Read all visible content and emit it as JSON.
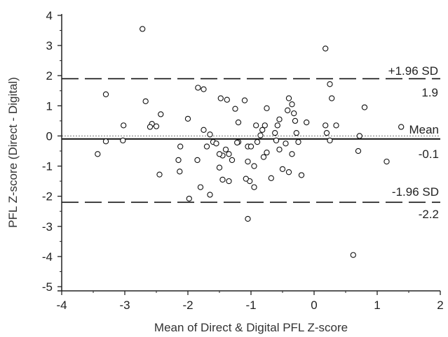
{
  "chart_data": {
    "type": "scatter",
    "xlabel": "Mean of Direct & Digital PFL Z-score",
    "ylabel": "PFL Z-score (Direct - Digital)",
    "xlim": [
      -4,
      2
    ],
    "ylim": [
      -5,
      4
    ],
    "xticks": [
      -4,
      -3,
      -2,
      -1,
      0,
      1,
      2
    ],
    "yticks": [
      -5,
      -4,
      -3,
      -2,
      -1,
      0,
      1,
      2,
      3,
      4
    ],
    "xtick_labels": [
      "-4",
      "-3",
      "-2",
      "-1",
      "0",
      "1",
      "2"
    ],
    "ytick_labels": [
      "-5",
      "-4",
      "-3",
      "-2",
      "-1",
      "0",
      "1",
      "2",
      "3",
      "4"
    ],
    "grid": false,
    "reference_lines": {
      "zero": {
        "y": 0
      },
      "mean": {
        "y": -0.1,
        "label": "Mean",
        "value_label": "-0.1"
      },
      "upper_loa": {
        "y": 1.9,
        "label": "+1.96 SD",
        "value_label": "1.9"
      },
      "lower_loa": {
        "y": -2.2,
        "label": "-1.96 SD",
        "value_label": "-2.2"
      }
    },
    "points": [
      [
        -2.72,
        3.55
      ],
      [
        0.18,
        2.9
      ],
      [
        -3.3,
        1.38
      ],
      [
        -2.67,
        1.15
      ],
      [
        -2.43,
        0.72
      ],
      [
        -2.57,
        0.4
      ],
      [
        -2.5,
        0.32
      ],
      [
        -2.6,
        0.3
      ],
      [
        -3.02,
        0.35
      ],
      [
        -3.03,
        -0.15
      ],
      [
        -3.3,
        -0.18
      ],
      [
        -3.43,
        -0.6
      ],
      [
        -2.45,
        -1.28
      ],
      [
        -2.12,
        -0.35
      ],
      [
        -2.13,
        -1.18
      ],
      [
        -2.15,
        -0.8
      ],
      [
        -2.0,
        0.57
      ],
      [
        -1.98,
        -2.08
      ],
      [
        -1.84,
        1.6
      ],
      [
        -1.75,
        1.55
      ],
      [
        -1.85,
        -0.8
      ],
      [
        -1.8,
        -1.7
      ],
      [
        -1.65,
        -1.95
      ],
      [
        -1.75,
        0.2
      ],
      [
        -1.65,
        0.05
      ],
      [
        -1.6,
        -0.2
      ],
      [
        -1.55,
        -0.25
      ],
      [
        -1.5,
        -1.05
      ],
      [
        -1.45,
        -0.65
      ],
      [
        -1.4,
        -0.45
      ],
      [
        -1.35,
        -0.6
      ],
      [
        -1.45,
        -1.45
      ],
      [
        -1.35,
        -1.5
      ],
      [
        -1.3,
        -0.8
      ],
      [
        -1.2,
        -0.2
      ],
      [
        -1.2,
        0.45
      ],
      [
        -1.25,
        0.9
      ],
      [
        -1.38,
        1.2
      ],
      [
        -1.48,
        1.25
      ],
      [
        -1.1,
        1.18
      ],
      [
        -1.05,
        -0.35
      ],
      [
        -1.0,
        -0.35
      ],
      [
        -1.05,
        -0.85
      ],
      [
        -1.02,
        -1.5
      ],
      [
        -1.08,
        -1.42
      ],
      [
        -0.95,
        -1.7
      ],
      [
        -0.95,
        -1.0
      ],
      [
        -0.9,
        -0.2
      ],
      [
        -0.85,
        0.02
      ],
      [
        -0.82,
        0.2
      ],
      [
        -0.78,
        0.35
      ],
      [
        -0.8,
        -0.7
      ],
      [
        -0.75,
        -0.55
      ],
      [
        -0.75,
        0.92
      ],
      [
        -0.68,
        -1.4
      ],
      [
        -0.6,
        -0.15
      ],
      [
        -0.58,
        0.35
      ],
      [
        -0.55,
        0.55
      ],
      [
        -0.55,
        -0.45
      ],
      [
        -0.5,
        -1.1
      ],
      [
        -0.45,
        -0.25
      ],
      [
        -0.42,
        0.85
      ],
      [
        -0.4,
        1.25
      ],
      [
        -0.35,
        1.05
      ],
      [
        -0.32,
        0.75
      ],
      [
        -0.3,
        0.5
      ],
      [
        -0.28,
        0.1
      ],
      [
        -0.25,
        -0.2
      ],
      [
        -0.35,
        -0.6
      ],
      [
        -0.4,
        -1.2
      ],
      [
        -0.2,
        -1.3
      ],
      [
        -0.12,
        0.45
      ],
      [
        0.18,
        0.35
      ],
      [
        0.2,
        0.1
      ],
      [
        0.25,
        -0.15
      ],
      [
        0.25,
        1.72
      ],
      [
        0.28,
        1.25
      ],
      [
        0.35,
        0.35
      ],
      [
        0.72,
        0.0
      ],
      [
        0.7,
        -0.5
      ],
      [
        0.8,
        0.95
      ],
      [
        0.62,
        -3.95
      ],
      [
        1.15,
        -0.85
      ],
      [
        1.38,
        0.3
      ],
      [
        -1.05,
        -2.75
      ],
      [
        -1.22,
        -0.22
      ],
      [
        -1.5,
        -0.6
      ],
      [
        -1.7,
        -0.35
      ],
      [
        -0.62,
        0.1
      ],
      [
        -0.92,
        0.35
      ]
    ]
  }
}
